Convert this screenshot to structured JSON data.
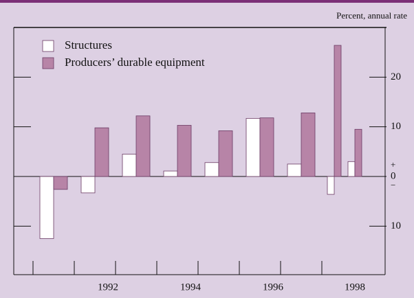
{
  "chart_data": {
    "type": "bar",
    "unit_label": "Percent, annual rate",
    "categories": [
      null,
      "1992",
      null,
      "1994",
      null,
      "1996",
      null,
      "1998",
      null
    ],
    "series": [
      {
        "name": "Structures",
        "color": "#ffffff",
        "values": [
          -12.5,
          -3.3,
          4.5,
          1.1,
          2.8,
          11.7,
          2.5,
          -3.6,
          3.0
        ]
      },
      {
        "name": "Producers’ durable equipment",
        "color": "#b784a7",
        "values": [
          -2.6,
          9.8,
          12.2,
          10.3,
          9.2,
          11.8,
          12.8,
          26.4,
          9.5
        ]
      }
    ],
    "ylim": [
      -17,
      30
    ],
    "yticks": [
      {
        "value": -10,
        "label": "10"
      },
      0,
      10,
      20
    ],
    "zero_signs": [
      "+",
      "−"
    ]
  }
}
